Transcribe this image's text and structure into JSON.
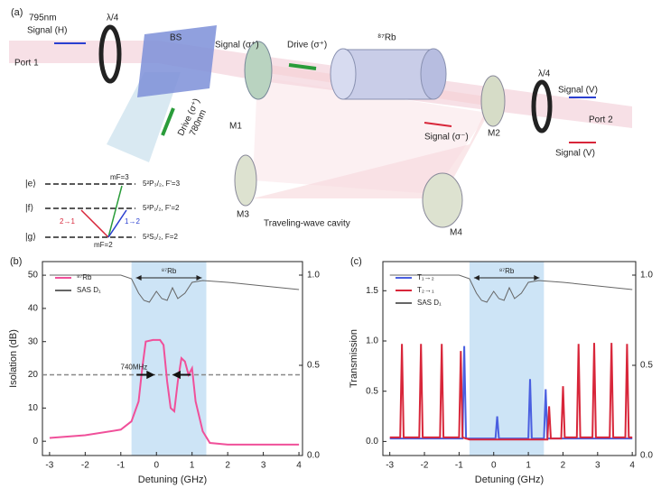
{
  "diagram": {
    "panel_label": "(a)",
    "wavelength_signal": "795nm",
    "signal_in": "Signal (H)",
    "qwp_1": "λ/4",
    "port_1": "Port 1",
    "bs": "BS",
    "signal_fwd": "Signal (σ⁺)",
    "drive_fwd": "Drive (σ⁺)",
    "cell": "⁸⁷Rb",
    "qwp_2": "λ/4",
    "signal_out": "Signal (V)",
    "port_2": "Port 2",
    "signal_back": "Signal (σ⁻)",
    "signal_back_in": "Signal (V)",
    "drive_in": "Drive (σ⁺)",
    "drive_wavelength": "780nm",
    "mirrors": [
      "M1",
      "M2",
      "M3",
      "M4"
    ],
    "cavity": "Traveling-wave cavity",
    "levels": [
      {
        "state": "|e⟩",
        "term": "5²P₃/₂, F'=3"
      },
      {
        "state": "|f⟩",
        "term": "5²P₁/₂, F'=2"
      },
      {
        "state": "|g⟩",
        "term": "5²S₁/₂, F=2"
      }
    ],
    "mf_top": "mF=3",
    "mf_bottom": "mF=2",
    "transition_red": "2→1",
    "transition_blue": "1→2"
  },
  "chart_data": [
    {
      "type": "line",
      "panel_label": "(b)",
      "xlabel": "Detuning (GHz)",
      "ylabel": "Isolation (dB)",
      "xlim": [
        -3.2,
        4.1
      ],
      "xticks": [
        -3,
        -2,
        -1,
        0,
        1,
        2,
        3,
        4
      ],
      "ylim": [
        -4.3,
        54.1
      ],
      "yticks": [
        0,
        10,
        20,
        30,
        40,
        50
      ],
      "y2lim": [
        0,
        1.075
      ],
      "y2ticks": [
        {
          "value": 0,
          "label": "0.0"
        },
        0.5,
        {
          "value": 1,
          "label": "1.0"
        }
      ],
      "shaded_region": [
        -0.7,
        1.4
      ],
      "shade_color": "#cde4f6",
      "reference_line": 20,
      "annotations": {
        "width": "740MHz",
        "cell": "⁸⁷Rb"
      },
      "legend": "upper left",
      "series": [
        {
          "name": "⁸⁷Rb",
          "color": "#f0509a",
          "x": [
            -3,
            -2,
            -1,
            -0.7,
            -0.5,
            -0.4,
            -0.3,
            -0.1,
            0.1,
            0.2,
            0.3,
            0.4,
            0.5,
            0.6,
            0.7,
            0.8,
            0.9,
            1.0,
            1.1,
            1.3,
            1.5,
            2,
            3,
            4
          ],
          "values": [
            1,
            1.8,
            3.5,
            6,
            12,
            22,
            30,
            30.5,
            30.5,
            29,
            18,
            10,
            9,
            18,
            25,
            24,
            20,
            22,
            12,
            3,
            -0.5,
            -1,
            -1,
            -1
          ]
        },
        {
          "name": "SAS D₁",
          "color": "#666666",
          "axis": "y2",
          "x": [
            -3,
            -1,
            -0.7,
            -0.5,
            -0.35,
            -0.2,
            0,
            0.15,
            0.3,
            0.45,
            0.6,
            0.8,
            1.0,
            1.3,
            2,
            3,
            4
          ],
          "values": [
            1.0,
            1.0,
            0.98,
            0.9,
            0.86,
            0.85,
            0.91,
            0.87,
            0.86,
            0.93,
            0.87,
            0.9,
            0.96,
            0.97,
            0.96,
            0.94,
            0.92
          ]
        }
      ]
    },
    {
      "type": "line",
      "panel_label": "(c)",
      "xlabel": "Detuning (GHz)",
      "ylabel": "Transmission",
      "xlim": [
        -3.2,
        4.1
      ],
      "xticks": [
        -3,
        -2,
        -1,
        0,
        1,
        2,
        3,
        4
      ],
      "ylim": [
        -0.14,
        1.79
      ],
      "yticks": [
        {
          "value": 0,
          "label": "0.0"
        },
        0.5,
        {
          "value": 1,
          "label": "1.0"
        },
        1.5
      ],
      "y2lim": [
        0,
        1.075
      ],
      "y2ticks": [
        {
          "value": 0,
          "label": "0.0"
        },
        0.5,
        {
          "value": 1,
          "label": "1.0"
        }
      ],
      "shaded_region": [
        -0.7,
        1.45
      ],
      "shade_color": "#cde4f6",
      "annotations": {
        "cell": "⁸⁷Rb"
      },
      "legend": "upper left",
      "series": [
        {
          "name": "T₁→₂",
          "color": "#4a5fe0",
          "x": [
            -3,
            -0.9,
            -0.85,
            -0.8,
            0.05,
            0.1,
            0.15,
            1.0,
            1.05,
            1.1,
            1.45,
            1.5,
            1.55,
            4
          ],
          "values": [
            0.03,
            0.03,
            0.95,
            0.03,
            0.03,
            0.25,
            0.03,
            0.03,
            0.62,
            0.03,
            0.03,
            0.52,
            0.03,
            0.03
          ]
        },
        {
          "name": "T₂→₁",
          "color": "#d8263a",
          "x": [
            -3,
            -2.7,
            -2.65,
            -2.6,
            -2.15,
            -2.1,
            -2.05,
            -1.55,
            -1.5,
            -1.45,
            -1.0,
            -0.95,
            -0.9,
            -0.7,
            1.5,
            1.55,
            1.6,
            1.65,
            1.95,
            2.0,
            2.05,
            2.4,
            2.45,
            2.5,
            2.85,
            2.9,
            2.95,
            3.35,
            3.4,
            3.45,
            3.8,
            3.85,
            3.9,
            4
          ],
          "values": [
            0.04,
            0.04,
            0.97,
            0.04,
            0.04,
            0.97,
            0.04,
            0.04,
            0.97,
            0.04,
            0.04,
            0.9,
            0.04,
            0.02,
            0.02,
            0.02,
            0.35,
            0.03,
            0.03,
            0.55,
            0.04,
            0.04,
            0.97,
            0.04,
            0.04,
            0.98,
            0.04,
            0.04,
            0.98,
            0.04,
            0.04,
            0.97,
            0.04,
            0.04
          ]
        },
        {
          "name": "SAS D₁",
          "color": "#666666",
          "axis": "y2",
          "x": [
            -3,
            -1,
            -0.7,
            -0.5,
            -0.35,
            -0.2,
            0,
            0.15,
            0.3,
            0.45,
            0.6,
            0.8,
            1.0,
            1.3,
            2,
            3,
            4
          ],
          "values": [
            1.0,
            1.0,
            0.98,
            0.9,
            0.86,
            0.85,
            0.91,
            0.87,
            0.86,
            0.93,
            0.87,
            0.9,
            0.96,
            0.97,
            0.96,
            0.94,
            0.92
          ]
        }
      ]
    }
  ]
}
